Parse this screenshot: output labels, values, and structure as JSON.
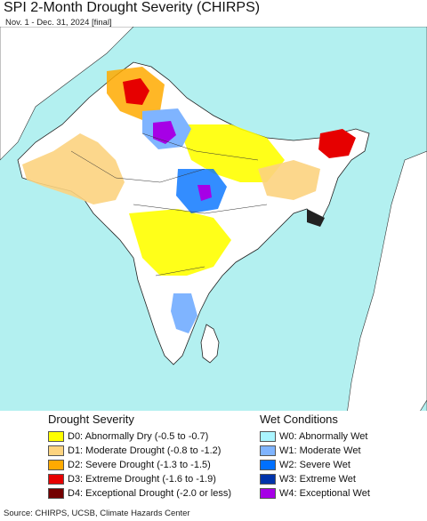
{
  "header": {
    "title": "SPI 2-Month Drought Severity (CHIRPS)",
    "subtitle": "Nov. 1 - Dec. 31, 2024 [final]"
  },
  "map": {
    "ocean_color": "#b3f0f0",
    "land_color": "#ffffff",
    "outside_region_color": "#ffffff"
  },
  "legend": {
    "drought": {
      "heading": "Drought Severity",
      "items": [
        {
          "label": "D0: Abnormally Dry (-0.5 to -0.7)",
          "color": "#ffff00"
        },
        {
          "label": "D1: Moderate Drought (-0.8 to -1.2)",
          "color": "#fcd37f"
        },
        {
          "label": "D2: Severe Drought (-1.3 to -1.5)",
          "color": "#ffaa00"
        },
        {
          "label": "D3: Extreme Drought (-1.6 to -1.9)",
          "color": "#e60000"
        },
        {
          "label": "D4: Exceptional Drought (-2.0 or less)",
          "color": "#730000"
        }
      ]
    },
    "wet": {
      "heading": "Wet Conditions",
      "items": [
        {
          "label": "W0: Abnormally Wet",
          "color": "#aaf5ff"
        },
        {
          "label": "W1: Moderate Wet",
          "color": "#7fb4ff"
        },
        {
          "label": "W2: Severe Wet",
          "color": "#0070ff"
        },
        {
          "label": "W3: Extreme Wet",
          "color": "#0033aa"
        },
        {
          "label": "W4: Exceptional Wet",
          "color": "#a600e6"
        }
      ]
    }
  },
  "footer": {
    "source": "Source: CHIRPS, UCSB, Climate Hazards Center"
  }
}
